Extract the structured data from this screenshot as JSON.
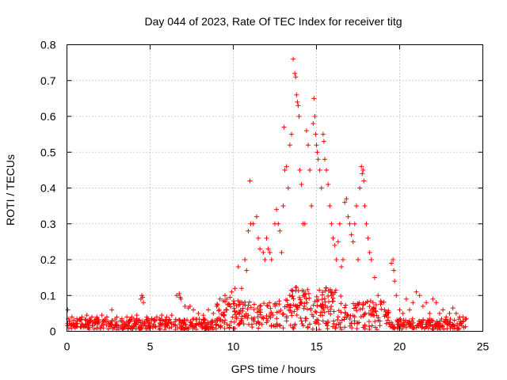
{
  "chart_data": {
    "type": "scatter",
    "title": "Day 044 of 2023, Rate Of TEC Index for receiver titg",
    "xlabel": "GPS time / hours",
    "ylabel": "ROTI / TECUs",
    "xlim": [
      0,
      25
    ],
    "ylim": [
      0,
      0.8
    ],
    "xticks": [
      0,
      5,
      10,
      15,
      20,
      25
    ],
    "xtick_labels": [
      "0",
      "5",
      "10",
      "15",
      "20",
      "25"
    ],
    "yticks": [
      0,
      0.1,
      0.2,
      0.3,
      0.4,
      0.5,
      0.6,
      0.7,
      0.8
    ],
    "ytick_labels": [
      "0",
      "0.1",
      "0.2",
      "0.3",
      "0.4",
      "0.5",
      "0.6",
      "0.7",
      "0.8"
    ],
    "grid": true,
    "marker": "plus",
    "color": "#ff0000",
    "series": [
      {
        "name": "ROTI",
        "x": [
          0.05,
          0.3,
          0.6,
          0.9,
          1.2,
          1.5,
          1.8,
          2.1,
          2.4,
          2.7,
          3.0,
          3.3,
          3.6,
          3.9,
          4.2,
          4.45,
          4.5,
          4.55,
          4.6,
          4.8,
          5.1,
          5.4,
          5.7,
          6.0,
          6.3,
          6.6,
          6.75,
          6.8,
          6.85,
          7.1,
          7.3,
          7.4,
          7.6,
          7.9,
          8.2,
          8.5,
          8.8,
          9.0,
          9.2,
          9.4,
          9.5,
          9.6,
          9.8,
          9.9,
          10.1,
          10.3,
          10.5,
          10.7,
          10.8,
          10.9,
          11.0,
          11.05,
          11.2,
          11.4,
          11.5,
          11.6,
          11.8,
          11.9,
          12.0,
          12.1,
          12.2,
          12.3,
          12.5,
          12.6,
          12.7,
          12.8,
          12.9,
          13.0,
          13.05,
          13.1,
          13.2,
          13.3,
          13.4,
          13.5,
          13.6,
          13.7,
          13.75,
          13.8,
          13.85,
          13.9,
          13.95,
          14.0,
          14.1,
          14.2,
          14.3,
          14.4,
          14.5,
          14.6,
          14.7,
          14.8,
          14.85,
          14.9,
          14.95,
          15.0,
          15.05,
          15.1,
          15.2,
          15.3,
          15.4,
          15.45,
          15.5,
          15.6,
          15.7,
          15.8,
          15.9,
          16.0,
          16.1,
          16.2,
          16.3,
          16.4,
          16.5,
          16.6,
          16.7,
          16.8,
          16.9,
          17.0,
          17.1,
          17.2,
          17.3,
          17.4,
          17.5,
          17.6,
          17.7,
          17.75,
          17.8,
          17.85,
          17.9,
          18.0,
          18.1,
          18.2,
          18.3,
          18.5,
          18.7,
          18.9,
          19.1,
          19.3,
          19.5,
          19.6,
          19.65,
          19.7,
          19.8,
          20.0,
          20.2,
          20.4,
          20.6,
          20.8,
          21.0,
          21.2,
          21.4,
          21.6,
          21.8,
          22.0,
          22.2,
          22.4,
          22.6,
          22.8,
          23.0,
          23.2,
          23.4,
          23.6,
          23.8,
          24.0
        ],
        "y": [
          0.06,
          0.04,
          0.035,
          0.04,
          0.045,
          0.04,
          0.04,
          0.045,
          0.04,
          0.06,
          0.04,
          0.035,
          0.04,
          0.04,
          0.045,
          0.09,
          0.1,
          0.095,
          0.08,
          0.04,
          0.035,
          0.04,
          0.045,
          0.04,
          0.045,
          0.1,
          0.105,
          0.095,
          0.09,
          0.07,
          0.065,
          0.07,
          0.06,
          0.05,
          0.045,
          0.06,
          0.05,
          0.07,
          0.09,
          0.085,
          0.1,
          0.09,
          0.095,
          0.11,
          0.12,
          0.18,
          0.12,
          0.2,
          0.17,
          0.28,
          0.42,
          0.3,
          0.3,
          0.32,
          0.26,
          0.23,
          0.22,
          0.2,
          0.26,
          0.23,
          0.22,
          0.2,
          0.3,
          0.34,
          0.3,
          0.28,
          0.22,
          0.35,
          0.57,
          0.45,
          0.46,
          0.4,
          0.52,
          0.55,
          0.76,
          0.72,
          0.71,
          0.66,
          0.64,
          0.63,
          0.6,
          0.45,
          0.41,
          0.3,
          0.3,
          0.56,
          0.52,
          0.45,
          0.35,
          0.58,
          0.65,
          0.6,
          0.55,
          0.52,
          0.5,
          0.48,
          0.45,
          0.4,
          0.55,
          0.53,
          0.48,
          0.45,
          0.41,
          0.35,
          0.3,
          0.26,
          0.24,
          0.2,
          0.25,
          0.3,
          0.18,
          0.2,
          0.36,
          0.37,
          0.32,
          0.3,
          0.27,
          0.25,
          0.3,
          0.35,
          0.2,
          0.4,
          0.46,
          0.44,
          0.45,
          0.42,
          0.35,
          0.3,
          0.26,
          0.22,
          0.2,
          0.15,
          0.1,
          0.08,
          0.06,
          0.05,
          0.19,
          0.2,
          0.17,
          0.14,
          0.1,
          0.06,
          0.05,
          0.09,
          0.06,
          0.08,
          0.11,
          0.1,
          0.07,
          0.08,
          0.05,
          0.09,
          0.08,
          0.05,
          0.06,
          0.04,
          0.05,
          0.065,
          0.05,
          0.04,
          0.04,
          0.035
        ]
      }
    ]
  }
}
